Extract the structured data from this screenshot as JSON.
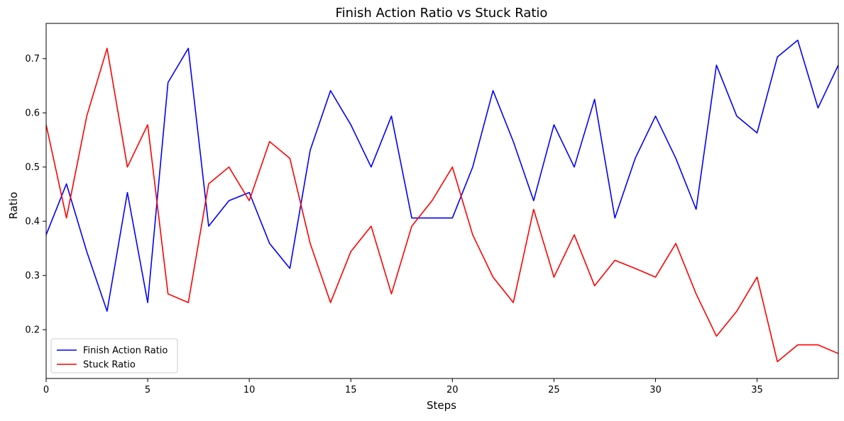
{
  "chart_data": {
    "type": "line",
    "title": "Finish Action Ratio vs Stuck Ratio",
    "xlabel": "Steps",
    "ylabel": "Ratio",
    "xlim": [
      0,
      39
    ],
    "ylim": [
      0.11,
      0.765
    ],
    "x": [
      0,
      1,
      2,
      3,
      4,
      5,
      6,
      7,
      8,
      9,
      10,
      11,
      12,
      13,
      14,
      15,
      16,
      17,
      18,
      19,
      20,
      21,
      22,
      23,
      24,
      25,
      26,
      27,
      28,
      29,
      30,
      31,
      32,
      33,
      34,
      35,
      36,
      37,
      38,
      39
    ],
    "xticks": [
      0,
      5,
      10,
      15,
      20,
      25,
      30,
      35
    ],
    "yticks": [
      0.2,
      0.3,
      0.4,
      0.5,
      0.6,
      0.7
    ],
    "grid": false,
    "legend_position": "lower-left",
    "series": [
      {
        "name": "Finish Action Ratio",
        "color": "#0000ff",
        "values": [
          0.375,
          0.469,
          0.344,
          0.234,
          0.453,
          0.25,
          0.656,
          0.719,
          0.391,
          0.438,
          0.453,
          0.359,
          0.313,
          0.531,
          0.641,
          0.578,
          0.5,
          0.594,
          0.406,
          0.406,
          0.406,
          0.5,
          0.641,
          0.547,
          0.438,
          0.578,
          0.5,
          0.625,
          0.406,
          0.516,
          0.594,
          0.516,
          0.422,
          0.688,
          0.594,
          0.563,
          0.703,
          0.734,
          0.609,
          0.688
        ]
      },
      {
        "name": "Stuck Ratio",
        "color": "#ff0000",
        "values": [
          0.578,
          0.406,
          0.594,
          0.719,
          0.5,
          0.578,
          0.266,
          0.25,
          0.469,
          0.5,
          0.438,
          0.547,
          0.516,
          0.359,
          0.25,
          0.344,
          0.391,
          0.266,
          0.391,
          0.438,
          0.5,
          0.375,
          0.297,
          0.25,
          0.422,
          0.297,
          0.375,
          0.281,
          0.328,
          0.313,
          0.297,
          0.359,
          0.266,
          0.188,
          0.234,
          0.297,
          0.141,
          0.172,
          0.172,
          0.156
        ]
      }
    ]
  }
}
